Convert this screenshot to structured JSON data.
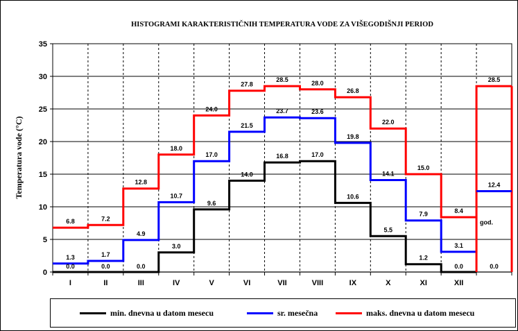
{
  "chart_data": {
    "type": "line",
    "step": true,
    "title": "HISTOGRAMI KARAKTERISTIČNIH TEMPERATURA VODE ZA VIŠEGODIŠNJI PERIOD",
    "xlabel": "",
    "ylabel": "Temperatura vode (°C)",
    "ylim": [
      0,
      35
    ],
    "yticks": [
      0,
      5,
      10,
      15,
      20,
      25,
      30,
      35
    ],
    "grid": true,
    "categories": [
      "I",
      "II",
      "III",
      "IV",
      "V",
      "VI",
      "VII",
      "VIII",
      "IX",
      "X",
      "XI",
      "XII"
    ],
    "series": [
      {
        "name": "min. dnevna u datom mesecu",
        "color": "#000000",
        "values": [
          0.0,
          0.0,
          0.0,
          3.0,
          9.6,
          14.0,
          16.8,
          17.0,
          10.6,
          5.5,
          1.2,
          0.0
        ],
        "labels": [
          "0.0",
          "0.0",
          "0.0",
          "3.0",
          "9.6",
          "14.0",
          "16.8",
          "17.0",
          "10.6",
          "5.5",
          "1.2",
          "0.0"
        ]
      },
      {
        "name": "sr. mesečna",
        "color": "#0000ff",
        "values": [
          1.3,
          1.7,
          4.9,
          10.7,
          17.0,
          21.5,
          23.7,
          23.6,
          19.8,
          14.1,
          7.9,
          3.1
        ],
        "labels": [
          "1.3",
          "1.7",
          "4.9",
          "10.7",
          "17.0",
          "21.5",
          "23.7",
          "23.6",
          "19.8",
          "14.1",
          "7.9",
          "3.1"
        ]
      },
      {
        "name": "maks. dnevna u datom mesecu",
        "color": "#ff0000",
        "values": [
          6.8,
          7.2,
          12.8,
          18.0,
          24.0,
          27.8,
          28.5,
          28.0,
          26.8,
          22.0,
          15.0,
          8.4
        ],
        "labels": [
          "6.8",
          "7.2",
          "12.8",
          "18.0",
          "24.0",
          "27.8",
          "28.5",
          "28.0",
          "26.8",
          "22.0",
          "15.0",
          "8.4"
        ]
      }
    ],
    "annual": {
      "label": "god.",
      "min": 0.0,
      "min_label": "0.0",
      "mean": 12.4,
      "mean_label": "12.4",
      "max": 28.5,
      "max_label": "28.5"
    },
    "legend_position": "bottom"
  }
}
